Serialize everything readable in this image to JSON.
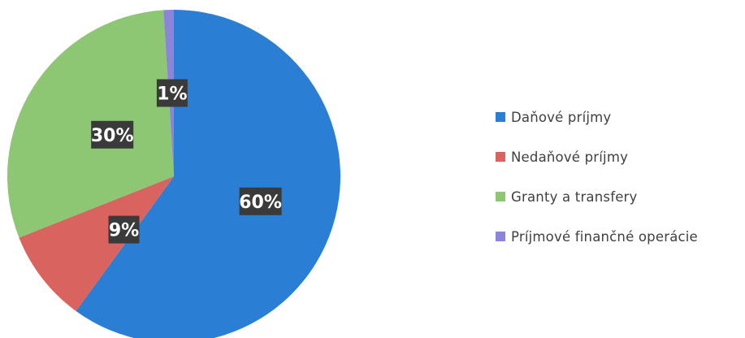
{
  "chart_data": {
    "type": "pie",
    "categories": [
      "Daňové príjmy",
      "Nedaňové príjmy",
      "Granty a transfery",
      "Príjmové finančné operácie"
    ],
    "values": [
      60,
      9,
      30,
      1
    ],
    "data_labels": [
      "60%",
      "9%",
      "30%",
      "1%"
    ],
    "colors": [
      "#2a7fd4",
      "#d9645f",
      "#8ec773",
      "#8c84d8"
    ],
    "legend_position": "right"
  }
}
